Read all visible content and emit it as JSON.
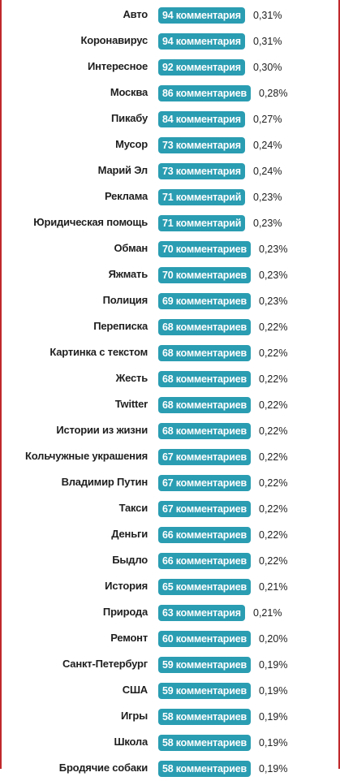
{
  "rows": [
    {
      "tag": "Авто",
      "count": "94 комментария",
      "percent": "0,31%"
    },
    {
      "tag": "Коронавирус",
      "count": "94 комментария",
      "percent": "0,31%"
    },
    {
      "tag": "Интересное",
      "count": "92 комментария",
      "percent": "0,30%"
    },
    {
      "tag": "Москва",
      "count": "86 комментариев",
      "percent": "0,28%"
    },
    {
      "tag": "Пикабу",
      "count": "84 комментария",
      "percent": "0,27%"
    },
    {
      "tag": "Мусор",
      "count": "73 комментария",
      "percent": "0,24%"
    },
    {
      "tag": "Марий Эл",
      "count": "73 комментария",
      "percent": "0,24%"
    },
    {
      "tag": "Реклама",
      "count": "71 комментарий",
      "percent": "0,23%"
    },
    {
      "tag": "Юридическая помощь",
      "count": "71 комментарий",
      "percent": "0,23%"
    },
    {
      "tag": "Обман",
      "count": "70 комментариев",
      "percent": "0,23%"
    },
    {
      "tag": "Яжмать",
      "count": "70 комментариев",
      "percent": "0,23%"
    },
    {
      "tag": "Полиция",
      "count": "69 комментариев",
      "percent": "0,23%"
    },
    {
      "tag": "Переписка",
      "count": "68 комментариев",
      "percent": "0,22%"
    },
    {
      "tag": "Картинка с текстом",
      "count": "68 комментариев",
      "percent": "0,22%"
    },
    {
      "tag": "Жесть",
      "count": "68 комментариев",
      "percent": "0,22%"
    },
    {
      "tag": "Twitter",
      "count": "68 комментариев",
      "percent": "0,22%"
    },
    {
      "tag": "Истории из жизни",
      "count": "68 комментариев",
      "percent": "0,22%"
    },
    {
      "tag": "Кольчужные украшения",
      "count": "67 комментариев",
      "percent": "0,22%"
    },
    {
      "tag": "Владимир Путин",
      "count": "67 комментариев",
      "percent": "0,22%"
    },
    {
      "tag": "Такси",
      "count": "67 комментариев",
      "percent": "0,22%"
    },
    {
      "tag": "Деньги",
      "count": "66 комментариев",
      "percent": "0,22%"
    },
    {
      "tag": "Быдло",
      "count": "66 комментариев",
      "percent": "0,22%"
    },
    {
      "tag": "История",
      "count": "65 комментариев",
      "percent": "0,21%"
    },
    {
      "tag": "Природа",
      "count": "63 комментария",
      "percent": "0,21%"
    },
    {
      "tag": "Ремонт",
      "count": "60 комментариев",
      "percent": "0,20%"
    },
    {
      "tag": "Санкт-Петербург",
      "count": "59 комментариев",
      "percent": "0,19%"
    },
    {
      "tag": "США",
      "count": "59 комментариев",
      "percent": "0,19%"
    },
    {
      "tag": "Игры",
      "count": "58 комментариев",
      "percent": "0,19%"
    },
    {
      "tag": "Школа",
      "count": "58 комментариев",
      "percent": "0,19%"
    },
    {
      "tag": "Бродячие собаки",
      "count": "58 комментариев",
      "percent": "0,19%"
    }
  ],
  "colors": {
    "badge": "#2a9db2",
    "frame": "#c0292b",
    "text": "#1f1f1f"
  }
}
